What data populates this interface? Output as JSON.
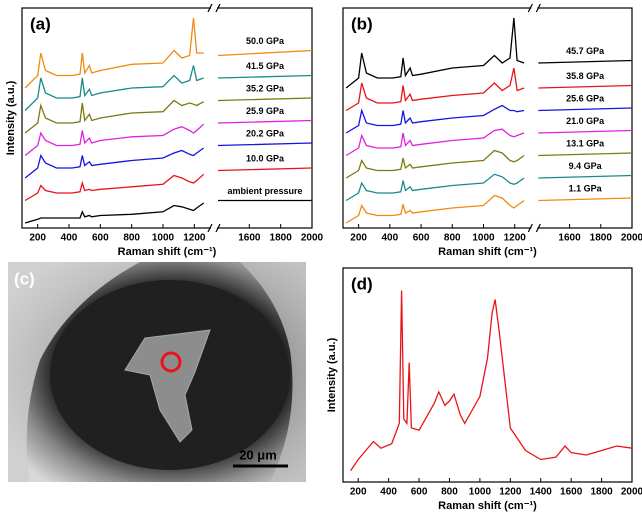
{
  "chart_data": [
    {
      "type": "line",
      "panel_label": "(a)",
      "ylabel": "Intensity (a.u.)",
      "xlabel": "Raman shift (cm⁻¹)",
      "xsegments": [
        [
          100,
          1300
        ],
        [
          1400,
          2000
        ]
      ],
      "ylim": [
        -0.2,
        8.6
      ],
      "xticks": [
        200,
        400,
        600,
        800,
        1000,
        1200,
        1600,
        1800,
        2000
      ],
      "x": [
        120,
        200,
        220,
        250,
        320,
        420,
        470,
        485,
        500,
        530,
        545,
        600,
        800,
        1000,
        1070,
        1120,
        1170,
        1195,
        1215,
        1260,
        1300,
        1400,
        2000
      ],
      "series": [
        {
          "name": "ambient pressure",
          "color": "#000000",
          "values": [
            0.0,
            0.15,
            0.2,
            0.2,
            0.2,
            0.2,
            0.2,
            0.45,
            0.25,
            0.3,
            0.25,
            0.3,
            0.35,
            0.45,
            0.7,
            0.65,
            0.55,
            0.5,
            0.6,
            0.8,
            null,
            0.9,
            0.9
          ]
        },
        {
          "name": "10.0 GPa",
          "color": "#e8141a",
          "values": [
            0.9,
            1.2,
            1.5,
            1.3,
            1.2,
            1.2,
            1.25,
            1.6,
            1.3,
            1.35,
            1.3,
            1.35,
            1.45,
            1.55,
            1.9,
            1.8,
            1.65,
            1.6,
            1.7,
            1.95,
            null,
            2.1,
            2.2
          ]
        },
        {
          "name": "20.2 GPa",
          "color": "#1515e0",
          "values": [
            1.8,
            2.2,
            2.7,
            2.4,
            2.2,
            2.2,
            2.25,
            2.7,
            2.3,
            2.45,
            2.3,
            2.35,
            2.5,
            2.6,
            2.8,
            2.9,
            2.75,
            2.7,
            2.8,
            3.0,
            null,
            3.1,
            3.2
          ]
        },
        {
          "name": "25.9 GPa",
          "color": "#e020e0",
          "values": [
            2.7,
            3.1,
            3.6,
            3.3,
            3.1,
            3.1,
            3.15,
            3.7,
            3.2,
            3.4,
            3.2,
            3.3,
            3.45,
            3.5,
            3.75,
            3.85,
            3.7,
            3.6,
            3.7,
            3.95,
            null,
            4.0,
            4.1
          ]
        },
        {
          "name": "35.2 GPa",
          "color": "#7d7a12",
          "values": [
            3.6,
            4.0,
            4.7,
            4.2,
            4.0,
            4.0,
            4.05,
            4.8,
            4.1,
            4.35,
            4.1,
            4.2,
            4.4,
            4.45,
            4.9,
            4.7,
            4.8,
            4.75,
            4.7,
            4.85,
            null,
            4.9,
            5.0
          ]
        },
        {
          "name": "41.5 GPa",
          "color": "#1a8a8a",
          "values": [
            4.5,
            5.0,
            5.8,
            5.2,
            5.0,
            5.0,
            5.05,
            5.8,
            5.1,
            5.35,
            5.1,
            5.2,
            5.4,
            5.45,
            5.9,
            5.6,
            5.7,
            6.3,
            5.7,
            5.8,
            null,
            5.8,
            5.9
          ]
        },
        {
          "name": "50.0 GPa",
          "color": "#f08a12",
          "values": [
            5.4,
            5.9,
            6.8,
            6.1,
            5.9,
            5.9,
            5.95,
            6.8,
            6.0,
            6.3,
            6.0,
            6.1,
            6.35,
            6.4,
            6.9,
            6.6,
            6.7,
            8.2,
            6.8,
            6.8,
            null,
            6.7,
            6.9
          ]
        }
      ]
    },
    {
      "type": "line",
      "panel_label": "(b)",
      "xlabel": "Raman shift (cm⁻¹)",
      "xsegments": [
        [
          100,
          1300
        ],
        [
          1400,
          2000
        ]
      ],
      "ylim": [
        -0.2,
        8.6
      ],
      "xticks": [
        200,
        400,
        600,
        800,
        1000,
        1200,
        1600,
        1800,
        2000
      ],
      "x": [
        120,
        200,
        220,
        250,
        320,
        420,
        470,
        485,
        500,
        530,
        545,
        600,
        800,
        1000,
        1070,
        1120,
        1170,
        1195,
        1215,
        1260,
        1300,
        1400,
        2000
      ],
      "series": [
        {
          "name": "1.1 GPa",
          "color": "#f08a12",
          "values": [
            0.0,
            0.3,
            0.7,
            0.4,
            0.3,
            0.3,
            0.35,
            0.75,
            0.4,
            0.5,
            0.4,
            0.45,
            0.6,
            0.7,
            1.1,
            1.0,
            0.7,
            0.6,
            0.7,
            0.9,
            null,
            0.9,
            1.0
          ]
        },
        {
          "name": "9.4 GPa",
          "color": "#1a8a8a",
          "values": [
            0.9,
            1.2,
            1.6,
            1.3,
            1.2,
            1.2,
            1.25,
            1.7,
            1.3,
            1.45,
            1.3,
            1.35,
            1.5,
            1.6,
            1.95,
            1.85,
            1.6,
            1.55,
            1.6,
            1.8,
            null,
            1.8,
            1.9
          ]
        },
        {
          "name": "13.1 GPa",
          "color": "#7d7a12",
          "values": [
            1.8,
            2.1,
            2.5,
            2.2,
            2.1,
            2.1,
            2.15,
            2.6,
            2.2,
            2.35,
            2.2,
            2.25,
            2.4,
            2.5,
            2.9,
            2.8,
            2.5,
            2.45,
            2.5,
            2.7,
            null,
            2.7,
            2.8
          ]
        },
        {
          "name": "21.0 GPa",
          "color": "#e020e0",
          "values": [
            2.7,
            3.0,
            3.5,
            3.1,
            3.0,
            3.0,
            3.05,
            3.6,
            3.1,
            3.3,
            3.1,
            3.15,
            3.3,
            3.4,
            3.7,
            3.75,
            3.5,
            3.45,
            3.5,
            3.6,
            null,
            3.6,
            3.7
          ]
        },
        {
          "name": "25.6 GPa",
          "color": "#1515e0",
          "values": [
            3.6,
            3.9,
            4.5,
            4.0,
            3.9,
            3.9,
            3.95,
            4.5,
            4.0,
            4.2,
            4.0,
            4.05,
            4.2,
            4.3,
            4.55,
            4.7,
            4.5,
            4.5,
            4.45,
            4.5,
            null,
            4.5,
            4.6
          ]
        },
        {
          "name": "35.8 GPa",
          "color": "#e8141a",
          "values": [
            4.5,
            4.8,
            5.6,
            5.0,
            4.8,
            4.8,
            4.85,
            5.5,
            4.9,
            5.15,
            4.9,
            4.95,
            5.1,
            5.2,
            5.6,
            5.3,
            5.5,
            6.2,
            5.3,
            5.4,
            null,
            5.4,
            5.5
          ]
        },
        {
          "name": "45.7 GPa",
          "color": "#000000",
          "values": [
            5.4,
            5.8,
            6.8,
            6.0,
            5.8,
            5.8,
            5.85,
            6.6,
            5.9,
            6.2,
            5.9,
            5.95,
            6.2,
            6.3,
            6.7,
            6.4,
            6.6,
            8.2,
            6.5,
            6.4,
            null,
            6.4,
            6.5
          ]
        }
      ]
    },
    {
      "type": "line",
      "panel_label": "(d)",
      "ylabel": "Intensity (a.u.)",
      "xlabel": "Raman shift (cm⁻¹)",
      "xlim": [
        100,
        2000
      ],
      "ylim": [
        0,
        9.5
      ],
      "color": "#e8141a",
      "xticks": [
        200,
        400,
        600,
        800,
        1000,
        1200,
        1400,
        1600,
        1800,
        2000
      ],
      "x": [
        150,
        200,
        300,
        350,
        420,
        470,
        485,
        500,
        520,
        535,
        550,
        600,
        700,
        730,
        770,
        800,
        830,
        870,
        900,
        1000,
        1050,
        1080,
        1100,
        1130,
        1200,
        1300,
        1400,
        1500,
        1560,
        1600,
        1700,
        1800,
        1900,
        2000
      ],
      "values": [
        0.5,
        1.0,
        1.8,
        1.5,
        1.7,
        2.6,
        8.5,
        2.8,
        2.6,
        5.3,
        2.4,
        2.3,
        3.5,
        4.0,
        3.4,
        3.6,
        3.9,
        3.0,
        2.6,
        3.8,
        5.5,
        7.5,
        8.1,
        6.5,
        2.4,
        1.4,
        1.0,
        1.1,
        1.6,
        1.3,
        1.2,
        1.4,
        1.6,
        1.5
      ]
    }
  ],
  "photo": {
    "label": "(c)",
    "scale_bar": "20 μm"
  }
}
